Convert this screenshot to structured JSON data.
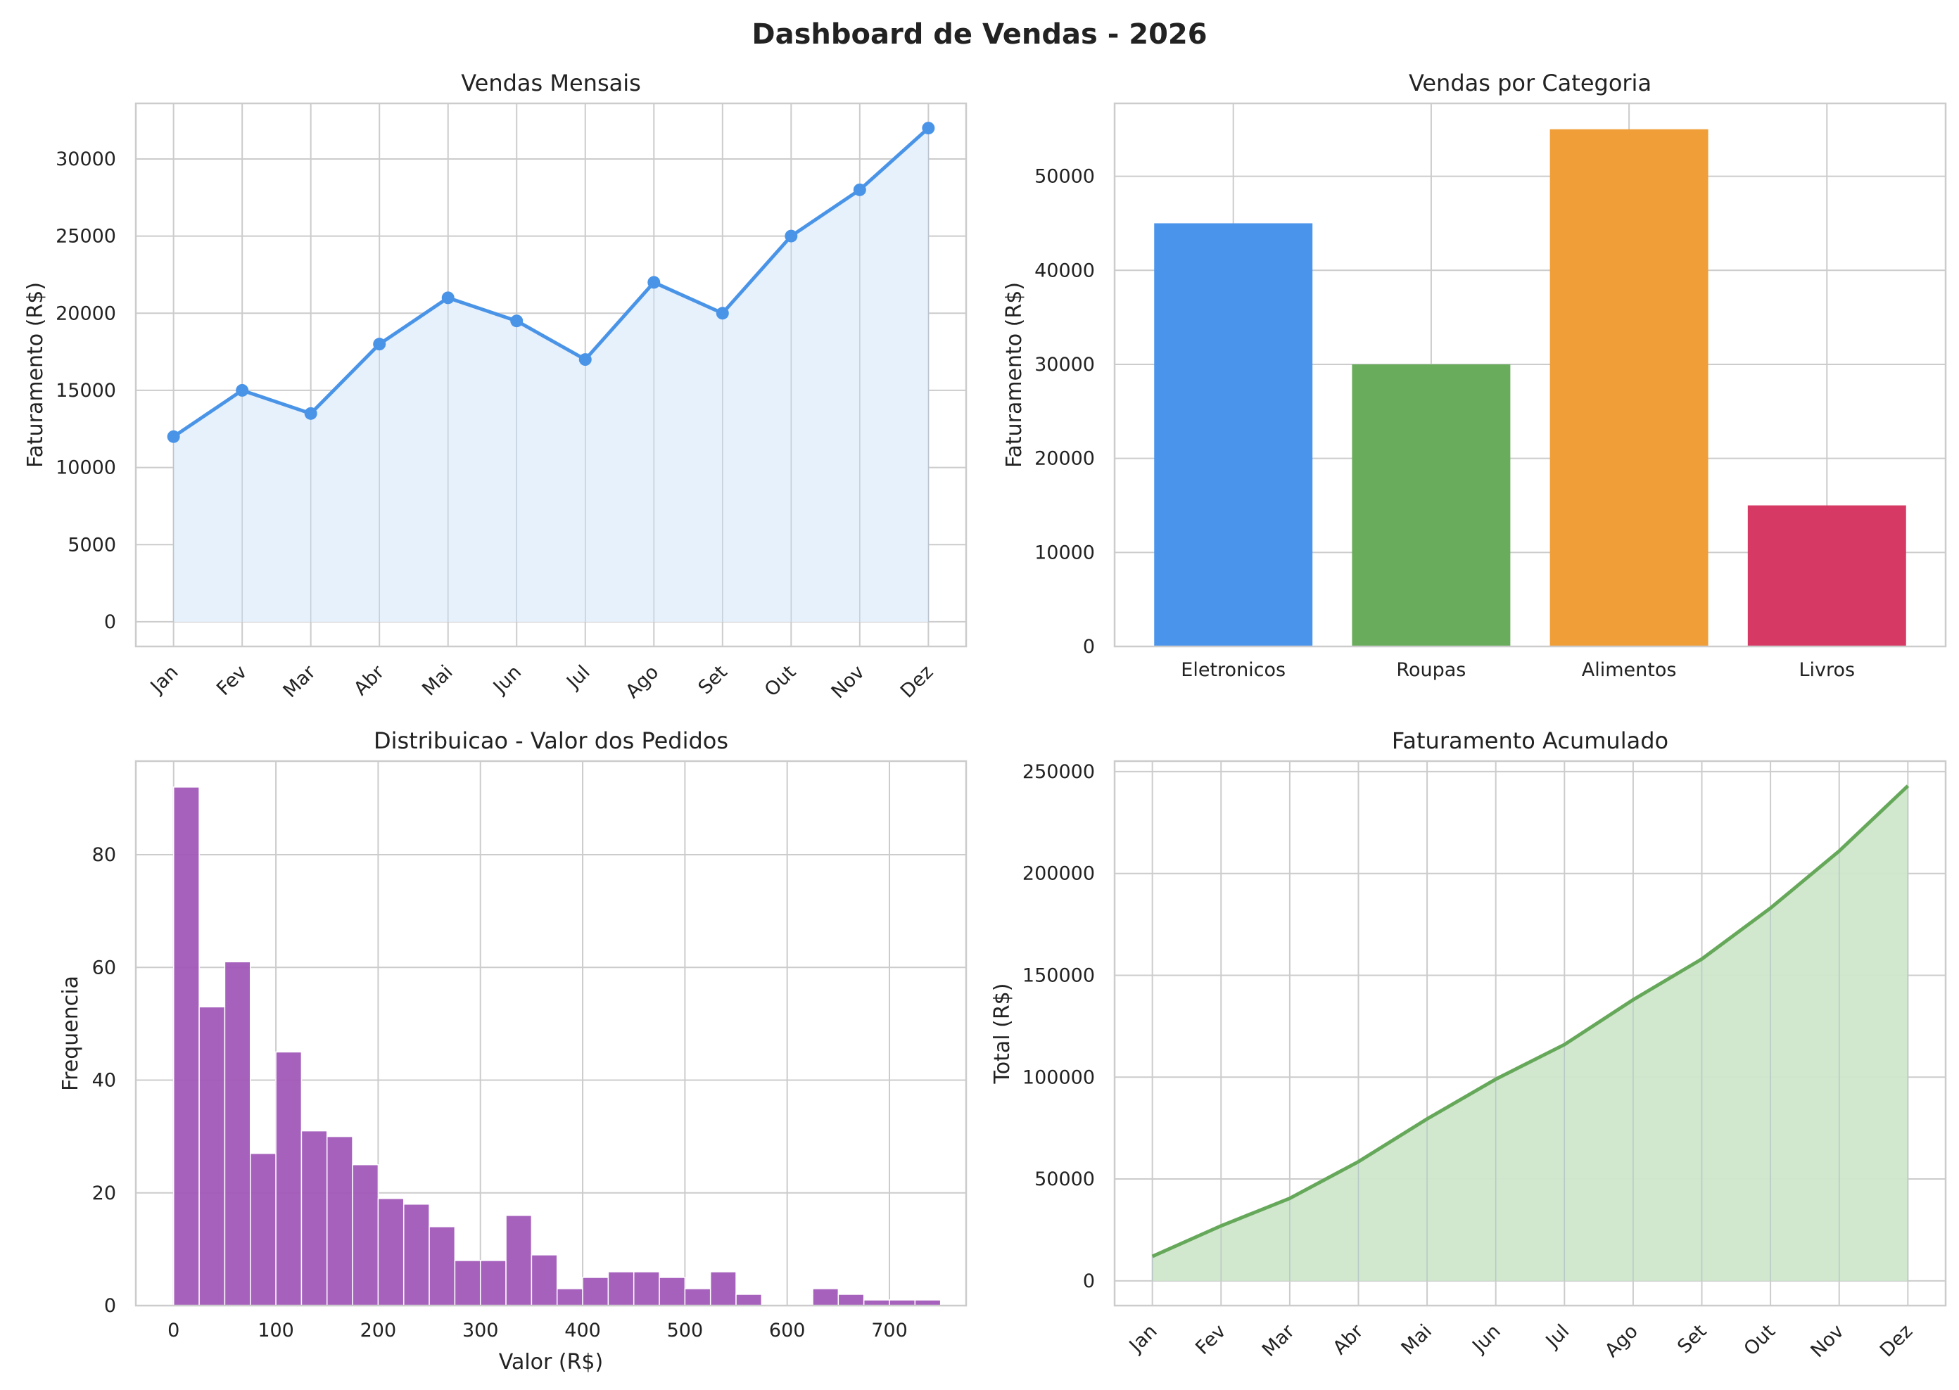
{
  "figure": {
    "title": "Dashboard de Vendas - 2026"
  },
  "chart_data": [
    {
      "id": "monthly",
      "type": "line",
      "title": "Vendas Mensais",
      "xlabel": "",
      "ylabel": "Faturamento (R$)",
      "categories": [
        "Jan",
        "Fev",
        "Mar",
        "Abr",
        "Mai",
        "Jun",
        "Jul",
        "Ago",
        "Set",
        "Out",
        "Nov",
        "Dez"
      ],
      "values": [
        12000,
        15000,
        13500,
        18000,
        21000,
        19500,
        17000,
        22000,
        20000,
        25000,
        28000,
        32000
      ],
      "ylim": [
        -1600,
        33600
      ],
      "yticks": [
        0,
        5000,
        10000,
        15000,
        20000,
        25000,
        30000
      ],
      "markers": true,
      "fill_area": true,
      "grid": true,
      "color": "#4a94e8",
      "fill_color": "#e7f1fb"
    },
    {
      "id": "category",
      "type": "bar",
      "title": "Vendas por Categoria",
      "xlabel": "",
      "ylabel": "Faturamento (R$)",
      "categories": [
        "Eletronicos",
        "Roupas",
        "Alimentos",
        "Livros"
      ],
      "values": [
        45000,
        30000,
        55000,
        15000
      ],
      "colors": [
        "#4a94ec",
        "#68ac5c",
        "#f09e38",
        "#d63a64"
      ],
      "ylim": [
        0,
        57750
      ],
      "yticks": [
        0,
        10000,
        20000,
        30000,
        40000,
        50000
      ],
      "grid": true
    },
    {
      "id": "histogram",
      "type": "bar",
      "subtype": "histogram",
      "title": "Distribuicao - Valor dos Pedidos",
      "xlabel": "Valor (R$)",
      "ylabel": "Frequencia",
      "bin_start": 0,
      "bin_width": 25,
      "counts": [
        92,
        53,
        61,
        27,
        45,
        31,
        30,
        25,
        19,
        18,
        14,
        8,
        8,
        16,
        9,
        3,
        5,
        6,
        6,
        5,
        3,
        6,
        2,
        0,
        0,
        3,
        2,
        1,
        1,
        1
      ],
      "xlim": [
        -37,
        775
      ],
      "ylim": [
        0,
        96.6
      ],
      "xticks": [
        0,
        100,
        200,
        300,
        400,
        500,
        600,
        700
      ],
      "yticks": [
        0,
        20,
        40,
        60,
        80
      ],
      "color": "#a259b9",
      "grid": true
    },
    {
      "id": "cumulative",
      "type": "area",
      "title": "Faturamento Acumulado",
      "xlabel": "",
      "ylabel": "Total (R$)",
      "categories": [
        "Jan",
        "Fev",
        "Mar",
        "Abr",
        "Mai",
        "Jun",
        "Jul",
        "Ago",
        "Set",
        "Out",
        "Nov",
        "Dez"
      ],
      "values": [
        12000,
        27000,
        40500,
        58500,
        79500,
        99000,
        116000,
        138000,
        158000,
        183000,
        211000,
        243000
      ],
      "ylim": [
        -12150,
        255150
      ],
      "yticks": [
        0,
        50000,
        100000,
        150000,
        200000,
        250000
      ],
      "color": "#66a85a",
      "fill_color": "#cfe6cb",
      "grid": true
    }
  ]
}
